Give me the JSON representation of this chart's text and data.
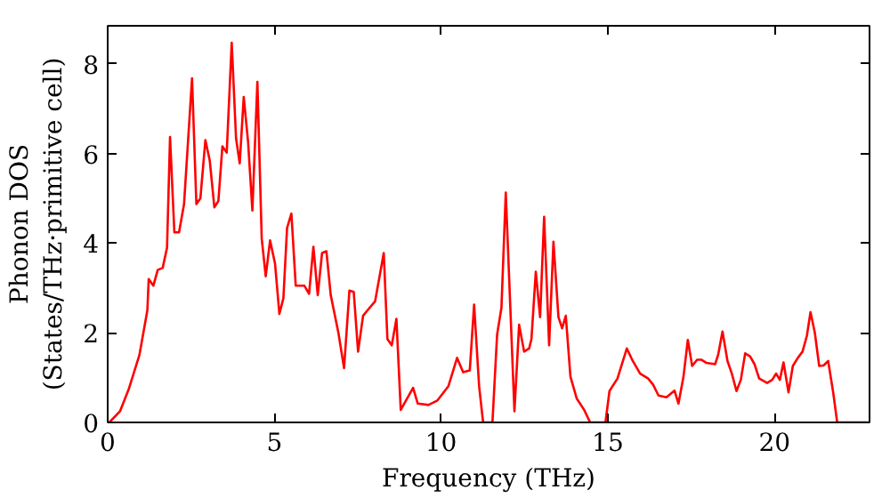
{
  "chart_data": {
    "type": "line",
    "xlabel": "Frequency (THz)",
    "ylabel": "Phonon DOS\n(States/THz·primitive cell)",
    "xlim": [
      0,
      22.85
    ],
    "ylim": [
      0,
      8.85
    ],
    "xticks": [
      0,
      5,
      10,
      15,
      20
    ],
    "yticks": [
      0,
      2,
      4,
      6,
      8
    ],
    "grid": false,
    "marker": "none",
    "line_style": "solid",
    "series": [
      {
        "color": "#ff0000",
        "x": [
          0.05,
          0.37,
          0.64,
          0.95,
          1.19,
          1.23,
          1.37,
          1.5,
          1.65,
          1.78,
          1.87,
          2.0,
          2.14,
          2.29,
          2.53,
          2.66,
          2.78,
          2.93,
          3.06,
          3.2,
          3.32,
          3.44,
          3.57,
          3.72,
          3.85,
          3.96,
          4.08,
          4.21,
          4.34,
          4.49,
          4.62,
          4.74,
          4.87,
          5.02,
          5.15,
          5.27,
          5.38,
          5.51,
          5.64,
          5.9,
          6.04,
          6.17,
          6.3,
          6.43,
          6.56,
          6.69,
          6.92,
          7.09,
          7.25,
          7.38,
          7.51,
          7.66,
          7.78,
          8.02,
          8.28,
          8.39,
          8.52,
          8.66,
          8.79,
          9.16,
          9.3,
          9.62,
          9.89,
          10.22,
          10.48,
          10.66,
          10.86,
          10.99,
          11.14,
          11.26,
          11.54,
          11.68,
          11.81,
          11.94,
          12.05,
          12.2,
          12.34,
          12.49,
          12.64,
          12.71,
          12.84,
          12.97,
          13.09,
          13.24,
          13.37,
          13.52,
          13.63,
          13.74,
          13.88,
          14.07,
          14.29,
          14.47,
          14.93,
          15.05,
          15.29,
          15.57,
          15.75,
          15.97,
          16.21,
          16.36,
          16.52,
          16.76,
          17.0,
          17.12,
          17.27,
          17.4,
          17.53,
          17.68,
          17.8,
          17.95,
          18.22,
          18.31,
          18.44,
          18.59,
          18.72,
          18.86,
          18.99,
          19.12,
          19.27,
          19.4,
          19.54,
          19.78,
          19.93,
          20.05,
          20.16,
          20.27,
          20.42,
          20.55,
          20.7,
          20.84,
          20.97,
          21.08,
          21.21,
          21.34,
          21.47,
          21.61,
          21.76,
          21.88,
          22.8
        ],
        "values": [
          0,
          0.25,
          0.76,
          1.5,
          2.5,
          3.2,
          3.05,
          3.4,
          3.45,
          3.9,
          6.37,
          4.24,
          4.24,
          4.87,
          7.68,
          4.87,
          5.0,
          6.3,
          5.85,
          4.8,
          4.94,
          6.16,
          6.02,
          8.47,
          6.34,
          5.78,
          7.26,
          6.27,
          4.73,
          7.6,
          4.1,
          3.26,
          4.06,
          3.54,
          2.42,
          2.77,
          4.34,
          4.66,
          3.05,
          3.05,
          2.87,
          3.92,
          2.84,
          3.78,
          3.82,
          2.84,
          2.0,
          1.21,
          2.94,
          2.91,
          1.58,
          2.38,
          2.49,
          2.7,
          3.78,
          1.86,
          1.72,
          2.31,
          0.28,
          0.77,
          0.42,
          0.39,
          0.49,
          0.81,
          1.44,
          1.12,
          1.16,
          2.63,
          0.81,
          0,
          0,
          1.96,
          2.56,
          5.13,
          3.05,
          0.25,
          2.18,
          1.58,
          1.65,
          1.86,
          3.36,
          2.35,
          4.59,
          1.72,
          4.03,
          2.35,
          2.1,
          2.38,
          1.02,
          0.53,
          0.28,
          0,
          0,
          0.7,
          0.98,
          1.65,
          1.37,
          1.09,
          0.98,
          0.84,
          0.6,
          0.56,
          0.71,
          0.42,
          1.02,
          1.84,
          1.26,
          1.4,
          1.4,
          1.33,
          1.3,
          1.51,
          2.03,
          1.37,
          1.09,
          0.7,
          0.95,
          1.54,
          1.47,
          1.3,
          0.98,
          0.88,
          0.95,
          1.09,
          0.95,
          1.34,
          0.67,
          1.26,
          1.44,
          1.58,
          1.93,
          2.46,
          2.0,
          1.26,
          1.27,
          1.37,
          0.67,
          0,
          0
        ]
      }
    ]
  }
}
